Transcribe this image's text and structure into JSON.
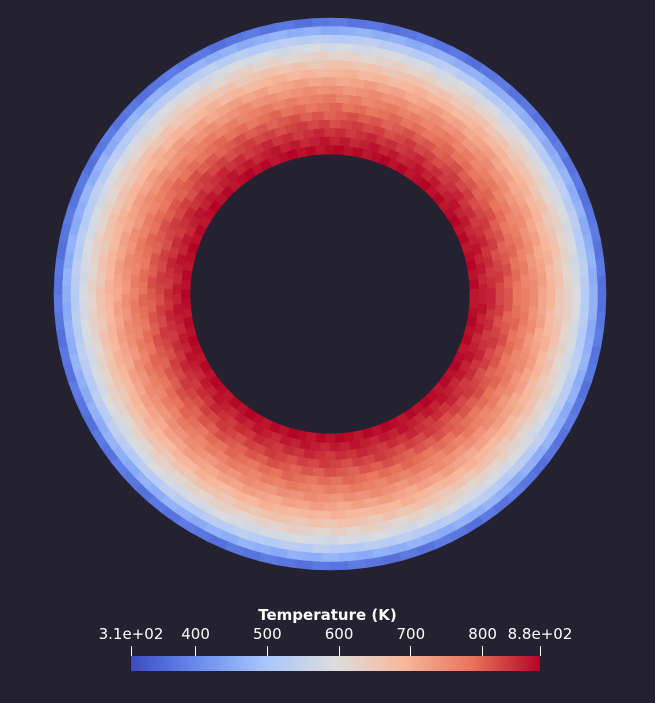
{
  "legend": {
    "title": "Temperature (K)",
    "min": 310,
    "max": 880,
    "ticks": [
      {
        "label": "3.1e+02",
        "value": 310
      },
      {
        "label": "400",
        "value": 400
      },
      {
        "label": "500",
        "value": 500
      },
      {
        "label": "600",
        "value": 600
      },
      {
        "label": "700",
        "value": 700
      },
      {
        "label": "800",
        "value": 800
      },
      {
        "label": "8.8e+02",
        "value": 880
      }
    ],
    "colormap": [
      "#3b4cc0",
      "#6b8df0",
      "#aac7fd",
      "#dddddd",
      "#f7b89c",
      "#e7745b",
      "#b40426"
    ]
  },
  "colors": {
    "background": "#242130",
    "text": "#ffffff",
    "annulus_outer_color": "#3b4cc0",
    "annulus_inner_color": "#b40426"
  }
}
